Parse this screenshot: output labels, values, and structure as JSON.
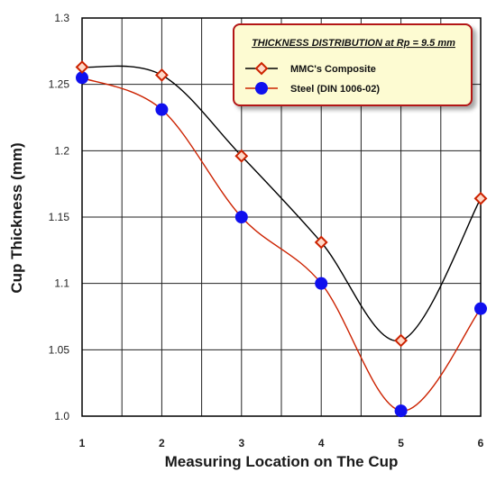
{
  "chart_data": {
    "type": "line",
    "title": "",
    "xlabel": "Measuring Location on The Cup",
    "ylabel": "Cup Thickness (mm)",
    "xlim": [
      1,
      6
    ],
    "ylim": [
      1.0,
      1.3
    ],
    "xticks": [
      "1",
      "2",
      "3",
      "4",
      "5",
      "6"
    ],
    "yticks": [
      "1.0",
      "1.05",
      "1.1",
      "1.15",
      "1.2",
      "1.25",
      "1.3"
    ],
    "grid": true,
    "legend": {
      "title": "THICKNESS DISTRIBUTION at Rp = 9.5 mm",
      "placement": "top-right"
    },
    "x": [
      1,
      2,
      3,
      4,
      5,
      6
    ],
    "series": [
      {
        "name": "MMC's Composite",
        "values": [
          1.263,
          1.257,
          1.196,
          1.131,
          1.057,
          1.164
        ],
        "line_color": "#000000",
        "marker": "diamond",
        "marker_color": "#cc2200"
      },
      {
        "name": "Steel (DIN 1006-02)",
        "values": [
          1.255,
          1.231,
          1.15,
          1.1,
          1.004,
          1.081
        ],
        "line_color": "#cc2200",
        "marker": "circle",
        "marker_color": "#1010ee"
      }
    ],
    "colors": {
      "legend_fill": "#fdfbd2",
      "legend_border": "#b31414",
      "grid": "#222222"
    }
  }
}
